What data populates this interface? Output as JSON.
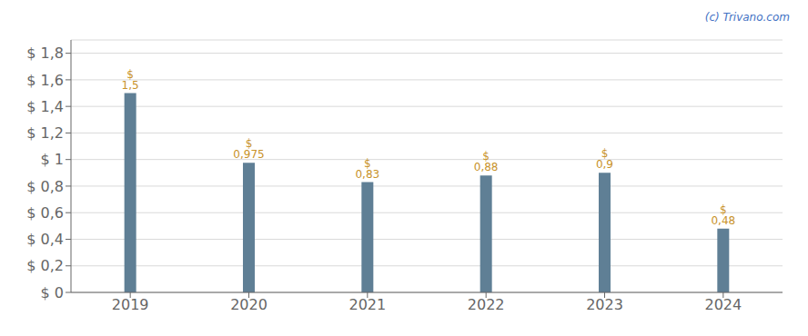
{
  "chart_data": {
    "type": "bar",
    "categories": [
      "2019",
      "2020",
      "2021",
      "2022",
      "2023",
      "2024"
    ],
    "values": [
      1.5,
      0.975,
      0.83,
      0.88,
      0.9,
      0.48
    ],
    "value_labels": [
      "$ 1,5",
      "$ 0,975",
      "$ 0,83",
      "$ 0,88",
      "$ 0,9",
      "$ 0,48"
    ],
    "data_labels": true,
    "color": "#5f7f95",
    "ylim": [
      0,
      1.9
    ],
    "yticks": [
      {
        "value": 0,
        "label": "$ 0"
      },
      {
        "value": 0.2,
        "label": "$ 0,2"
      },
      {
        "value": 0.4,
        "label": "$ 0,4"
      },
      {
        "value": 0.6,
        "label": "$ 0,6"
      },
      {
        "value": 0.8,
        "label": "$ 0,8"
      },
      {
        "value": 1.0,
        "label": "$ 1"
      },
      {
        "value": 1.2,
        "label": "$ 1,2"
      },
      {
        "value": 1.4,
        "label": "$ 1,4"
      },
      {
        "value": 1.6,
        "label": "$ 1,6"
      },
      {
        "value": 1.8,
        "label": "$ 1,8"
      }
    ],
    "grid": true,
    "annotations": [
      "(c) Trivano.com"
    ]
  }
}
